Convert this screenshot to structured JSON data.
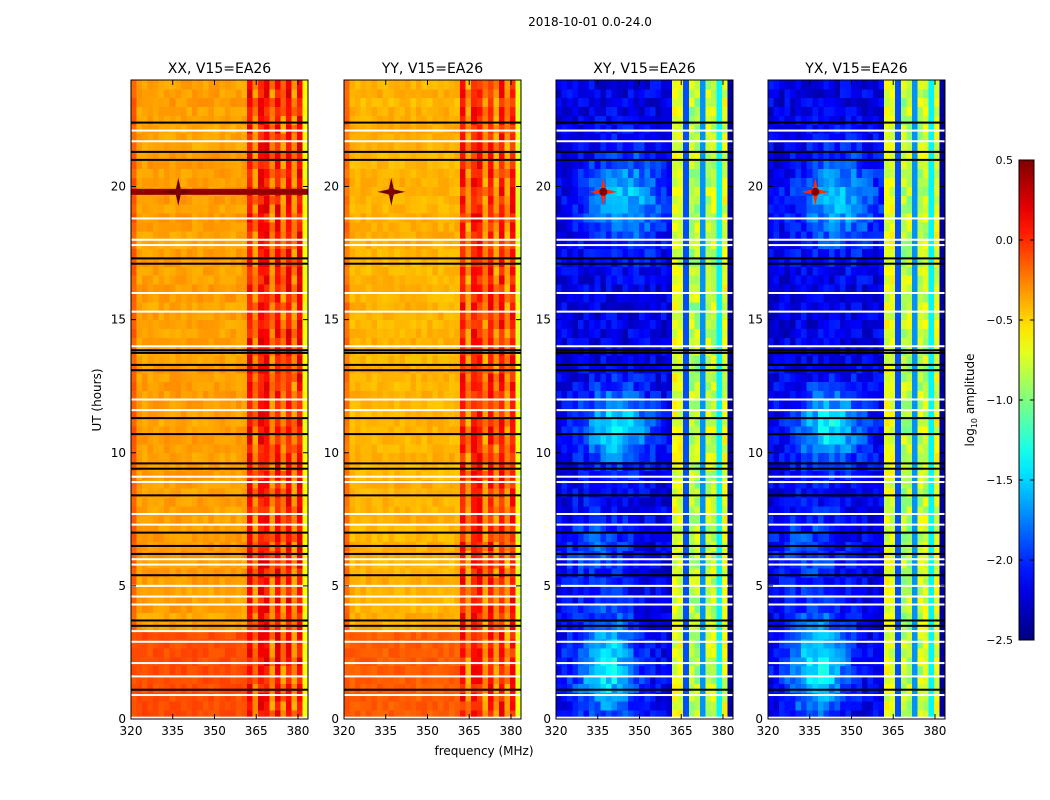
{
  "chart_data": {
    "type": "heatmap",
    "title": "2018-10-01 0.0-24.0",
    "xlabel": "frequency (MHz)",
    "ylabel": "UT (hours)",
    "xlim": [
      320,
      383.6
    ],
    "ylim": [
      0,
      24
    ],
    "xticks": [
      "320",
      "335",
      "350",
      "365",
      "380"
    ],
    "xtick_values": [
      320,
      335,
      350,
      365,
      380
    ],
    "yticks": [
      "0",
      "5",
      "10",
      "15",
      "20"
    ],
    "ytick_values": [
      0,
      5,
      10,
      15,
      20
    ],
    "colorbar": {
      "label": "log10 amplitude",
      "label_main": "log",
      "label_sub": "10",
      "label_tail": " amplitude",
      "colormap": "jet",
      "vmin": -2.5,
      "vmax": 0.5,
      "ticks": [
        "0.5",
        "0.0",
        "−0.5",
        "−1.0",
        "−1.5",
        "−2.0",
        "−2.5"
      ],
      "tick_values": [
        0.5,
        0.0,
        -0.5,
        -1.0,
        -1.5,
        -2.0,
        -2.5
      ]
    },
    "panels": [
      {
        "title": "XX, V15=EA26",
        "kind": "parallel",
        "background": -0.35,
        "early_hours_level": -0.1,
        "band_level": 0.0
      },
      {
        "title": "YY, V15=EA26",
        "kind": "parallel",
        "background": -0.4,
        "early_hours_level": -0.15,
        "band_level": -0.05
      },
      {
        "title": "XY, V15=EA26",
        "kind": "cross",
        "background": -2.2,
        "band_level": -0.7
      },
      {
        "title": "YX, V15=EA26",
        "kind": "cross",
        "background": -2.2,
        "band_level": -0.7
      }
    ],
    "interference_band_mhz": [
      362,
      381
    ],
    "point_source": {
      "freq_mhz": 337,
      "hour": 19.8,
      "value": 0.5
    },
    "flagged_hours_black": [
      22.4,
      21.3,
      21.0,
      17.3,
      17.1,
      13.85,
      13.75,
      13.3,
      13.1,
      11.3,
      10.7,
      9.6,
      9.4,
      8.4,
      7.0,
      6.5,
      6.2,
      5.4,
      3.7,
      3.5,
      1.1
    ],
    "gap_hours_white": [
      22.1,
      21.7,
      18.8,
      18.0,
      17.8,
      16.0,
      15.3,
      14.0,
      12.0,
      11.6,
      9.1,
      8.9,
      7.7,
      7.3,
      6.0,
      5.8,
      5.0,
      4.6,
      4.3,
      3.3,
      2.9,
      2.1,
      1.6,
      0.9,
      0.05
    ]
  }
}
